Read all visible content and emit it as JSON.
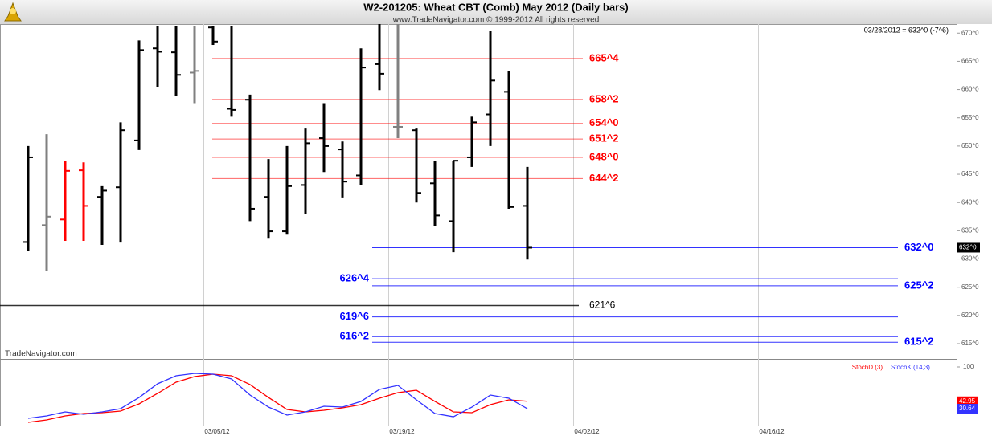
{
  "chart_data": {
    "type": "ohlc",
    "title": "W2-201205:  Wheat CBT (Comb) May 2012  (Daily bars)",
    "subtitle": "www.TradeNavigator.com © 1999-2012 All rights reserved",
    "status": "03/28/2012 = 632^0 (-7^6)",
    "watermark": "TradeNavigator.com",
    "categories": [
      null,
      null,
      null,
      null,
      null,
      null,
      null,
      null,
      null,
      null,
      "03/05/12",
      null,
      null,
      null,
      null,
      null,
      null,
      null,
      null,
      null,
      "03/19/12",
      null,
      null,
      null,
      null,
      null,
      null,
      null,
      null,
      null,
      "04/02/12",
      null,
      null,
      null,
      null,
      null,
      null,
      null,
      null,
      null,
      "04/16/12",
      null,
      null,
      null,
      null,
      null,
      null,
      null,
      null,
      null,
      null
    ],
    "open": [
      633.0,
      636.0,
      637.0,
      645.7,
      641.0,
      642.7,
      651.0,
      667.3,
      666.6,
      663.0,
      671.0,
      656.6,
      658.2,
      641.0,
      634.9,
      643.1,
      651.4,
      649.4,
      644.8,
      664.5,
      653.4,
      652.8,
      643.4,
      636.7,
      648.0,
      655.6,
      659.6,
      639.4,
      null,
      null,
      null,
      null,
      null,
      null,
      null,
      null,
      null,
      null,
      null,
      null,
      null,
      null,
      null,
      null,
      null,
      null,
      null,
      null,
      null,
      null,
      null
    ],
    "high": [
      650.0,
      652.1,
      647.4,
      647.1,
      642.9,
      654.2,
      668.7,
      671.3,
      671.3,
      671.3,
      671.3,
      671.3,
      659.1,
      647.7,
      650.0,
      653.1,
      657.6,
      650.8,
      667.3,
      671.6,
      671.6,
      653.1,
      647.4,
      647.4,
      655.2,
      670.4,
      663.3,
      646.3,
      null,
      null,
      null,
      null,
      null,
      null,
      null,
      null,
      null,
      null,
      null,
      null,
      null,
      null,
      null,
      null,
      null,
      null,
      null,
      null,
      null,
      null,
      null
    ],
    "low": [
      631.5,
      627.8,
      633.2,
      633.2,
      632.5,
      632.9,
      649.3,
      660.5,
      658.8,
      657.6,
      667.9,
      655.2,
      636.7,
      633.6,
      634.3,
      638.0,
      645.4,
      640.9,
      643.1,
      659.9,
      651.4,
      640.0,
      635.8,
      631.2,
      646.3,
      650.0,
      638.9,
      629.9,
      null,
      null,
      null,
      null,
      null,
      null,
      null,
      null,
      null,
      null,
      null,
      null,
      null,
      null,
      null,
      null,
      null,
      null,
      null,
      null,
      null,
      null,
      null
    ],
    "close": [
      648.0,
      637.5,
      645.6,
      639.4,
      642.1,
      652.8,
      667.0,
      666.7,
      662.6,
      663.3,
      668.5,
      656.4,
      638.9,
      634.9,
      642.9,
      650.5,
      650.0,
      643.7,
      663.9,
      662.8,
      653.4,
      641.7,
      637.7,
      647.4,
      654.2,
      661.6,
      639.2,
      632.0,
      null,
      null,
      null,
      null,
      null,
      null,
      null,
      null,
      null,
      null,
      null,
      null,
      null,
      null,
      null,
      null,
      null,
      null,
      null,
      null,
      null,
      null,
      null
    ],
    "bar_colors": [
      "#000000",
      "#808080",
      "#ff0000",
      "#ff0000",
      "#000000",
      "#000000",
      "#000000",
      "#000000",
      "#000000",
      "#808080",
      "#000000",
      "#000000",
      "#000000",
      "#000000",
      "#000000",
      "#000000",
      "#000000",
      "#000000",
      "#000000",
      "#000000",
      "#808080",
      "#000000",
      "#000000",
      "#000000",
      "#000000",
      "#000000",
      "#000000",
      "#000000",
      null,
      null,
      null,
      null,
      null,
      null,
      null,
      null,
      null,
      null,
      null,
      null,
      null,
      null,
      null,
      null,
      null,
      null,
      null,
      null,
      null,
      null,
      null
    ],
    "last_price_label": "632^0",
    "ylim": [
      612.3,
      671.6
    ],
    "yticks": [
      {
        "value": 670,
        "label": "670^0"
      },
      {
        "value": 665,
        "label": "665^0"
      },
      {
        "value": 660,
        "label": "660^0"
      },
      {
        "value": 655,
        "label": "655^0"
      },
      {
        "value": 650,
        "label": "650^0"
      },
      {
        "value": 645,
        "label": "645^0"
      },
      {
        "value": 640,
        "label": "640^0"
      },
      {
        "value": 635,
        "label": "635^0"
      },
      {
        "value": 630,
        "label": "630^0"
      },
      {
        "value": 625,
        "label": "625^0"
      },
      {
        "value": 620,
        "label": "620^0"
      },
      {
        "value": 615,
        "label": "615^0"
      }
    ],
    "levels": [
      {
        "value": 665.5,
        "label": "665^4",
        "color": "#ff0000",
        "side": "right"
      },
      {
        "value": 658.25,
        "label": "658^2",
        "color": "#ff0000",
        "side": "right"
      },
      {
        "value": 654,
        "label": "654^0",
        "color": "#ff0000",
        "side": "right"
      },
      {
        "value": 651.25,
        "label": "651^2",
        "color": "#ff0000",
        "side": "right"
      },
      {
        "value": 648,
        "label": "648^0",
        "color": "#ff0000",
        "side": "right"
      },
      {
        "value": 644.25,
        "label": "644^2",
        "color": "#ff0000",
        "side": "right"
      },
      {
        "value": 632,
        "label": "632^0",
        "color": "#0000ff",
        "side": "right"
      },
      {
        "value": 626.5,
        "label": "626^4",
        "color": "#0000ff",
        "side": "left"
      },
      {
        "value": 625.25,
        "label": "625^2",
        "color": "#0000ff",
        "side": "right"
      },
      {
        "value": 621.75,
        "label": "621^6",
        "color": "#000000",
        "side": "right"
      },
      {
        "value": 619.75,
        "label": "619^6",
        "color": "#0000ff",
        "side": "left"
      },
      {
        "value": 616.25,
        "label": "616^2",
        "color": "#0000ff",
        "side": "left"
      },
      {
        "value": 615.25,
        "label": "615^2",
        "color": "#0000ff",
        "side": "right"
      }
    ],
    "stoch": {
      "ylim": [
        0,
        100
      ],
      "yticks": [
        100
      ],
      "series": [
        {
          "name": "StochD (3)",
          "color": "#ff0000",
          "values": [
            8,
            12,
            18.7,
            22.7,
            24,
            26.7,
            38.7,
            56,
            74.7,
            84,
            88,
            85.3,
            70.7,
            49.3,
            29.3,
            25.3,
            28,
            32,
            37.3,
            48,
            57.3,
            61.3,
            42.7,
            25.3,
            24,
            37.3,
            45.3,
            42.95,
            null,
            null,
            null,
            null,
            null,
            null,
            null,
            null,
            null,
            null,
            null,
            null,
            null,
            null,
            null,
            null,
            null,
            null,
            null,
            null,
            null,
            null,
            null
          ]
        },
        {
          "name": "StochK (14,3)",
          "color": "#3333ff",
          "values": [
            14.7,
            18.7,
            25.3,
            21.3,
            25.3,
            30.7,
            49.3,
            72,
            85.3,
            89.3,
            88,
            80,
            53.3,
            33.3,
            20,
            25.3,
            34.7,
            33.3,
            42.7,
            62.7,
            69.3,
            45.3,
            22.7,
            17.3,
            33.3,
            53.3,
            48,
            30.64,
            null,
            null,
            null,
            null,
            null,
            null,
            null,
            null,
            null,
            null,
            null,
            null,
            null,
            null,
            null,
            null,
            null,
            null,
            null,
            null,
            null,
            null,
            null
          ]
        }
      ]
    }
  }
}
